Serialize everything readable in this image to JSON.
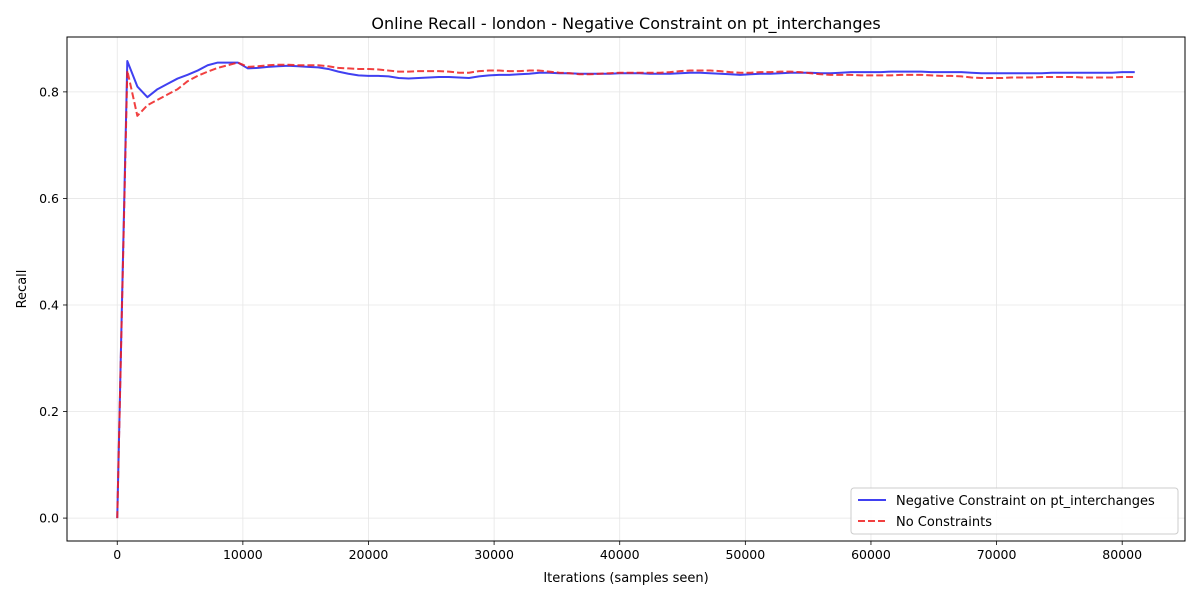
{
  "chart_data": {
    "type": "line",
    "title": "Online Recall - london - Negative Constraint on pt_interchanges",
    "xlabel": "Iterations (samples seen)",
    "ylabel": "Recall",
    "xlim": [
      -4000,
      85000
    ],
    "ylim": [
      -0.043,
      0.903
    ],
    "xticks": [
      0,
      10000,
      20000,
      30000,
      40000,
      50000,
      60000,
      70000,
      80000
    ],
    "yticks": [
      0.0,
      0.2,
      0.4,
      0.6,
      0.8
    ],
    "grid": true,
    "legend_position": "bottom-right",
    "series": [
      {
        "name": "Negative Constraint on pt_interchanges",
        "color": "#1f1fef",
        "style": "solid",
        "points": [
          [
            0,
            0.0
          ],
          [
            800,
            0.858
          ],
          [
            1600,
            0.81
          ],
          [
            2400,
            0.79
          ],
          [
            3200,
            0.805
          ],
          [
            4000,
            0.815
          ],
          [
            4800,
            0.825
          ],
          [
            5600,
            0.832
          ],
          [
            6400,
            0.84
          ],
          [
            7200,
            0.85
          ],
          [
            8000,
            0.855
          ],
          [
            8800,
            0.855
          ],
          [
            9600,
            0.855
          ],
          [
            10400,
            0.844
          ],
          [
            11200,
            0.845
          ],
          [
            12000,
            0.847
          ],
          [
            12800,
            0.848
          ],
          [
            13600,
            0.849
          ],
          [
            14400,
            0.848
          ],
          [
            15200,
            0.847
          ],
          [
            16000,
            0.846
          ],
          [
            16800,
            0.843
          ],
          [
            17600,
            0.838
          ],
          [
            18400,
            0.834
          ],
          [
            19200,
            0.831
          ],
          [
            20000,
            0.83
          ],
          [
            20800,
            0.83
          ],
          [
            21600,
            0.829
          ],
          [
            22400,
            0.826
          ],
          [
            23200,
            0.825
          ],
          [
            24000,
            0.826
          ],
          [
            24800,
            0.827
          ],
          [
            25600,
            0.828
          ],
          [
            26400,
            0.828
          ],
          [
            27200,
            0.827
          ],
          [
            28000,
            0.826
          ],
          [
            28800,
            0.829
          ],
          [
            29600,
            0.831
          ],
          [
            30400,
            0.832
          ],
          [
            31200,
            0.832
          ],
          [
            32000,
            0.833
          ],
          [
            32800,
            0.834
          ],
          [
            33600,
            0.836
          ],
          [
            34400,
            0.836
          ],
          [
            35200,
            0.835
          ],
          [
            36000,
            0.835
          ],
          [
            36800,
            0.834
          ],
          [
            37600,
            0.834
          ],
          [
            38400,
            0.834
          ],
          [
            39200,
            0.834
          ],
          [
            40000,
            0.835
          ],
          [
            40800,
            0.835
          ],
          [
            41600,
            0.835
          ],
          [
            42400,
            0.834
          ],
          [
            43200,
            0.834
          ],
          [
            44000,
            0.834
          ],
          [
            44800,
            0.835
          ],
          [
            45600,
            0.836
          ],
          [
            46400,
            0.836
          ],
          [
            47200,
            0.835
          ],
          [
            48000,
            0.834
          ],
          [
            48800,
            0.833
          ],
          [
            49600,
            0.832
          ],
          [
            50400,
            0.833
          ],
          [
            51200,
            0.834
          ],
          [
            52000,
            0.834
          ],
          [
            52800,
            0.835
          ],
          [
            53600,
            0.836
          ],
          [
            54400,
            0.836
          ],
          [
            55200,
            0.836
          ],
          [
            56000,
            0.835
          ],
          [
            56800,
            0.835
          ],
          [
            57600,
            0.836
          ],
          [
            58400,
            0.837
          ],
          [
            59200,
            0.837
          ],
          [
            60000,
            0.837
          ],
          [
            60800,
            0.837
          ],
          [
            61600,
            0.838
          ],
          [
            62400,
            0.838
          ],
          [
            63200,
            0.838
          ],
          [
            64000,
            0.838
          ],
          [
            64800,
            0.837
          ],
          [
            65600,
            0.837
          ],
          [
            66400,
            0.837
          ],
          [
            67200,
            0.837
          ],
          [
            68000,
            0.836
          ],
          [
            68800,
            0.835
          ],
          [
            69600,
            0.835
          ],
          [
            70400,
            0.835
          ],
          [
            71200,
            0.835
          ],
          [
            72000,
            0.835
          ],
          [
            72800,
            0.835
          ],
          [
            73600,
            0.835
          ],
          [
            74400,
            0.836
          ],
          [
            75200,
            0.836
          ],
          [
            76000,
            0.836
          ],
          [
            76800,
            0.836
          ],
          [
            77600,
            0.836
          ],
          [
            78400,
            0.836
          ],
          [
            79200,
            0.836
          ],
          [
            80000,
            0.837
          ],
          [
            81000,
            0.837
          ]
        ]
      },
      {
        "name": "No Constraints",
        "color": "#ef1f1f",
        "style": "dashed",
        "points": [
          [
            0,
            0.0
          ],
          [
            800,
            0.84
          ],
          [
            1600,
            0.755
          ],
          [
            2400,
            0.775
          ],
          [
            3200,
            0.785
          ],
          [
            4000,
            0.795
          ],
          [
            4800,
            0.805
          ],
          [
            5600,
            0.82
          ],
          [
            6400,
            0.83
          ],
          [
            7200,
            0.838
          ],
          [
            8000,
            0.845
          ],
          [
            8800,
            0.85
          ],
          [
            9600,
            0.855
          ],
          [
            10400,
            0.847
          ],
          [
            11200,
            0.848
          ],
          [
            12000,
            0.85
          ],
          [
            12800,
            0.851
          ],
          [
            13600,
            0.851
          ],
          [
            14400,
            0.85
          ],
          [
            15200,
            0.85
          ],
          [
            16000,
            0.85
          ],
          [
            16800,
            0.848
          ],
          [
            17600,
            0.845
          ],
          [
            18400,
            0.844
          ],
          [
            19200,
            0.843
          ],
          [
            20000,
            0.843
          ],
          [
            20800,
            0.842
          ],
          [
            21600,
            0.84
          ],
          [
            22400,
            0.838
          ],
          [
            23200,
            0.838
          ],
          [
            24000,
            0.839
          ],
          [
            24800,
            0.839
          ],
          [
            25600,
            0.839
          ],
          [
            26400,
            0.838
          ],
          [
            27200,
            0.836
          ],
          [
            28000,
            0.836
          ],
          [
            28800,
            0.839
          ],
          [
            29600,
            0.84
          ],
          [
            30400,
            0.84
          ],
          [
            31200,
            0.839
          ],
          [
            32000,
            0.839
          ],
          [
            32800,
            0.84
          ],
          [
            33600,
            0.84
          ],
          [
            34400,
            0.838
          ],
          [
            35200,
            0.836
          ],
          [
            36000,
            0.835
          ],
          [
            36800,
            0.833
          ],
          [
            37600,
            0.833
          ],
          [
            38400,
            0.834
          ],
          [
            39200,
            0.835
          ],
          [
            40000,
            0.836
          ],
          [
            40800,
            0.836
          ],
          [
            41600,
            0.836
          ],
          [
            42400,
            0.836
          ],
          [
            43200,
            0.836
          ],
          [
            44000,
            0.837
          ],
          [
            44800,
            0.839
          ],
          [
            45600,
            0.84
          ],
          [
            46400,
            0.84
          ],
          [
            47200,
            0.84
          ],
          [
            48000,
            0.839
          ],
          [
            48800,
            0.837
          ],
          [
            49600,
            0.836
          ],
          [
            50400,
            0.836
          ],
          [
            51200,
            0.837
          ],
          [
            52000,
            0.837
          ],
          [
            52800,
            0.838
          ],
          [
            53600,
            0.838
          ],
          [
            54400,
            0.837
          ],
          [
            55200,
            0.835
          ],
          [
            56000,
            0.833
          ],
          [
            56800,
            0.832
          ],
          [
            57600,
            0.832
          ],
          [
            58400,
            0.832
          ],
          [
            59200,
            0.831
          ],
          [
            60000,
            0.831
          ],
          [
            60800,
            0.831
          ],
          [
            61600,
            0.831
          ],
          [
            62400,
            0.832
          ],
          [
            63200,
            0.832
          ],
          [
            64000,
            0.832
          ],
          [
            64800,
            0.831
          ],
          [
            65600,
            0.83
          ],
          [
            66400,
            0.83
          ],
          [
            67200,
            0.829
          ],
          [
            68000,
            0.827
          ],
          [
            68800,
            0.826
          ],
          [
            69600,
            0.826
          ],
          [
            70400,
            0.826
          ],
          [
            71200,
            0.827
          ],
          [
            72000,
            0.827
          ],
          [
            72800,
            0.827
          ],
          [
            73600,
            0.828
          ],
          [
            74400,
            0.828
          ],
          [
            75200,
            0.828
          ],
          [
            76000,
            0.828
          ],
          [
            76800,
            0.827
          ],
          [
            77600,
            0.827
          ],
          [
            78400,
            0.827
          ],
          [
            79200,
            0.827
          ],
          [
            80000,
            0.828
          ],
          [
            81000,
            0.828
          ]
        ]
      }
    ]
  }
}
